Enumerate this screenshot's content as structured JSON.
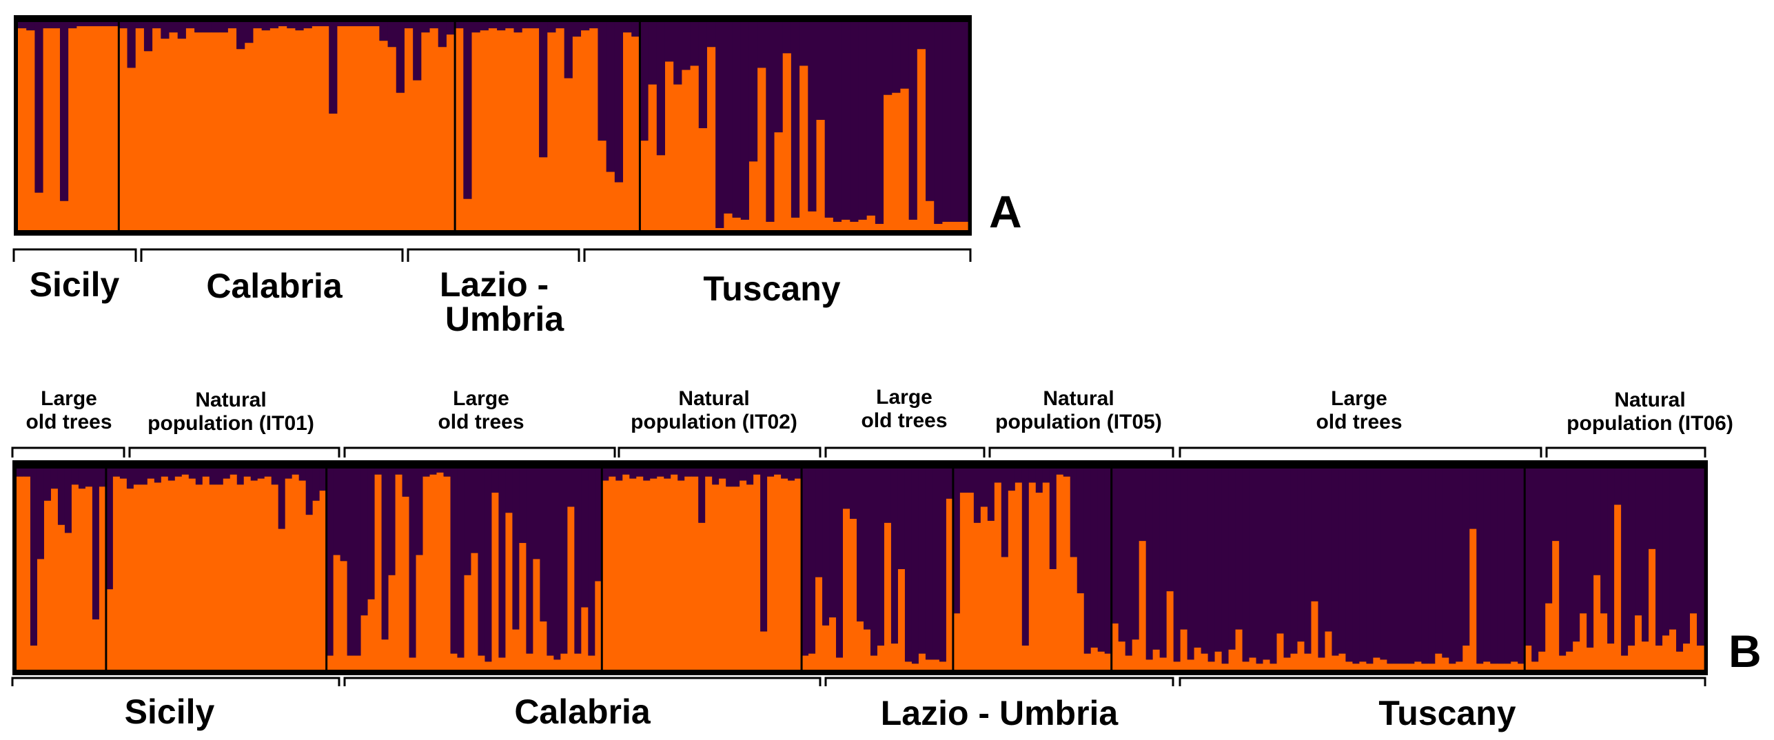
{
  "chart_data": [
    {
      "type": "bar",
      "subtype": "stacked-admixture",
      "panel_label": "A",
      "colors": {
        "cluster1": "#FF6600",
        "cluster2": "#350042",
        "border": "#000000"
      },
      "series_names": [
        "cluster1 (orange)",
        "cluster2 (purple)"
      ],
      "ylim": [
        0,
        1
      ],
      "groups": [
        {
          "name": "Sicily",
          "values": [
            0.97,
            0.96,
            0.18,
            0.97,
            0.97,
            0.14,
            0.97,
            0.98,
            0.98,
            0.98,
            0.98,
            0.98
          ]
        },
        {
          "name": "Calabria",
          "values": [
            0.97,
            0.78,
            0.97,
            0.86,
            0.97,
            0.92,
            0.95,
            0.92,
            0.97,
            0.95,
            0.95,
            0.95,
            0.95,
            0.97,
            0.87,
            0.9,
            0.97,
            0.96,
            0.97,
            0.98,
            0.97,
            0.96,
            0.97,
            0.98,
            0.98,
            0.56,
            0.98,
            0.98,
            0.98,
            0.98,
            0.98,
            0.91,
            0.88,
            0.66,
            0.97,
            0.72,
            0.95,
            0.97,
            0.88,
            0.94
          ]
        },
        {
          "name": "Lazio - Umbria",
          "values": [
            0.97,
            0.15,
            0.95,
            0.96,
            0.97,
            0.96,
            0.97,
            0.95,
            0.97,
            0.97,
            0.35,
            0.95,
            0.97,
            0.73,
            0.93,
            0.96,
            0.97,
            0.43,
            0.28,
            0.23,
            0.95,
            0.93
          ]
        },
        {
          "name": "Tuscany",
          "values": [
            0.43,
            0.7,
            0.36,
            0.81,
            0.7,
            0.77,
            0.79,
            0.49,
            0.88,
            0.01,
            0.08,
            0.06,
            0.05,
            0.33,
            0.78,
            0.04,
            0.47,
            0.85,
            0.06,
            0.79,
            0.09,
            0.53,
            0.06,
            0.04,
            0.05,
            0.04,
            0.05,
            0.07,
            0.03,
            0.65,
            0.66,
            0.68,
            0.05,
            0.87,
            0.14,
            0.03,
            0.04,
            0.04,
            0.04
          ]
        }
      ],
      "region_labels": [
        "Sicily",
        "Calabria",
        "Lazio -\nUmbria",
        "Tuscany"
      ]
    },
    {
      "type": "bar",
      "subtype": "stacked-admixture",
      "panel_label": "B",
      "colors": {
        "cluster1": "#FF6600",
        "cluster2": "#350042",
        "border": "#000000"
      },
      "series_names": [
        "cluster1 (orange)",
        "cluster2 (purple)"
      ],
      "ylim": [
        0,
        1
      ],
      "groups": [
        {
          "name": "Sicily - Large old trees",
          "label": "Large\nold trees",
          "values": [
            0.96,
            0.96,
            0.12,
            0.55,
            0.84,
            0.9,
            0.72,
            0.68,
            0.92,
            0.9,
            0.91,
            0.25,
            0.91
          ]
        },
        {
          "name": "Sicily - Natural population (IT01)",
          "label": "Natural\npopulation (IT01)",
          "values": [
            0.4,
            0.96,
            0.95,
            0.9,
            0.92,
            0.92,
            0.95,
            0.93,
            0.96,
            0.94,
            0.96,
            0.97,
            0.95,
            0.92,
            0.96,
            0.92,
            0.92,
            0.95,
            0.97,
            0.92,
            0.96,
            0.94,
            0.95,
            0.96,
            0.92,
            0.7,
            0.95,
            0.97,
            0.94,
            0.77,
            0.84,
            0.89
          ]
        },
        {
          "name": "Calabria - Large old trees",
          "label": "Large\nold trees",
          "values": [
            0.07,
            0.57,
            0.54,
            0.07,
            0.07,
            0.27,
            0.35,
            0.97,
            0.15,
            0.47,
            0.97,
            0.86,
            0.06,
            0.57,
            0.96,
            0.97,
            0.98,
            0.96,
            0.08,
            0.06,
            0.47,
            0.58,
            0.07,
            0.04,
            0.88,
            0.06,
            0.78,
            0.2,
            0.63,
            0.08,
            0.55,
            0.24,
            0.07,
            0.05,
            0.08,
            0.81,
            0.08,
            0.31,
            0.07,
            0.44
          ]
        },
        {
          "name": "Calabria - Natural population (IT02)",
          "label": "Natural\npopulation (IT02)",
          "values": [
            0.94,
            0.96,
            0.94,
            0.97,
            0.95,
            0.96,
            0.94,
            0.95,
            0.96,
            0.95,
            0.97,
            0.94,
            0.96,
            0.96,
            0.73,
            0.96,
            0.92,
            0.95,
            0.91,
            0.91,
            0.94,
            0.92,
            0.97,
            0.19,
            0.96,
            0.97,
            0.95,
            0.94,
            0.95
          ]
        },
        {
          "name": "Lazio - Umbria - Large old trees",
          "label": "Large\nold trees",
          "values": [
            0.07,
            0.08,
            0.46,
            0.22,
            0.26,
            0.06,
            0.8,
            0.75,
            0.24,
            0.2,
            0.07,
            0.12,
            0.73,
            0.13,
            0.5,
            0.04,
            0.03,
            0.08,
            0.05,
            0.05,
            0.04,
            0.85
          ]
        },
        {
          "name": "Lazio - Umbria - Natural population (IT05)",
          "label": "Natural\npopulation (IT05)",
          "values": [
            0.28,
            0.88,
            0.88,
            0.73,
            0.81,
            0.74,
            0.93,
            0.56,
            0.89,
            0.93,
            0.12,
            0.93,
            0.88,
            0.93,
            0.5,
            0.97,
            0.96,
            0.56,
            0.38,
            0.08,
            0.11,
            0.09,
            0.08
          ]
        },
        {
          "name": "Tuscany - Large old trees",
          "label": "Large\nold trees",
          "values": [
            0.23,
            0.14,
            0.07,
            0.15,
            0.64,
            0.05,
            0.1,
            0.06,
            0.39,
            0.04,
            0.2,
            0.05,
            0.11,
            0.08,
            0.04,
            0.09,
            0.03,
            0.1,
            0.2,
            0.04,
            0.06,
            0.03,
            0.05,
            0.03,
            0.18,
            0.06,
            0.08,
            0.14,
            0.08,
            0.34,
            0.06,
            0.19,
            0.07,
            0.08,
            0.04,
            0.03,
            0.04,
            0.03,
            0.06,
            0.05,
            0.03,
            0.03,
            0.03,
            0.03,
            0.04,
            0.03,
            0.03,
            0.08,
            0.06,
            0.03,
            0.04,
            0.12,
            0.7,
            0.03,
            0.04,
            0.03,
            0.03,
            0.03,
            0.04,
            0.03
          ]
        },
        {
          "name": "Tuscany - Natural population (IT06)",
          "label": "Natural\npopulation (IT06)",
          "values": [
            0.12,
            0.04,
            0.09,
            0.33,
            0.64,
            0.07,
            0.09,
            0.14,
            0.28,
            0.11,
            0.47,
            0.28,
            0.13,
            0.82,
            0.07,
            0.12,
            0.27,
            0.14,
            0.6,
            0.12,
            0.17,
            0.2,
            0.09,
            0.13,
            0.28,
            0.12
          ]
        }
      ],
      "region_labels": [
        "Sicily",
        "Calabria",
        "Lazio - Umbria",
        "Tuscany"
      ]
    }
  ]
}
